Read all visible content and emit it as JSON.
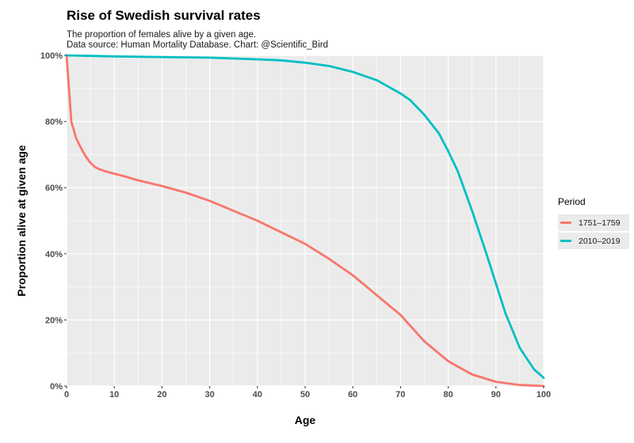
{
  "title": "Rise of Swedish survival rates",
  "subtitle_line1": "The proportion of females alive by a given age.",
  "subtitle_line2": "Data source: Human Mortality Database. Chart: @Scientific_Bird",
  "legend": {
    "title": "Period",
    "items": [
      {
        "label": "1751–1759",
        "color": "#F8766D"
      },
      {
        "label": "2010–2019",
        "color": "#00BFC4"
      }
    ]
  },
  "chart_data": {
    "type": "line",
    "title": "Rise of Swedish survival rates",
    "xlabel": "Age",
    "ylabel": "Proportion alive at given age",
    "xlim": [
      0,
      100
    ],
    "ylim": [
      0,
      100
    ],
    "x_ticks": [
      0,
      10,
      20,
      30,
      40,
      50,
      60,
      70,
      80,
      90,
      100
    ],
    "y_ticks": [
      0,
      20,
      40,
      60,
      80,
      100
    ],
    "y_tick_labels": [
      "0%",
      "20%",
      "40%",
      "60%",
      "80%",
      "100%"
    ],
    "grid": true,
    "legend_position": "right",
    "background": "#EBEBEB",
    "series": [
      {
        "name": "1751–1759",
        "color": "#F8766D",
        "x": [
          0,
          1,
          2,
          3,
          4,
          5,
          6,
          7,
          8,
          10,
          12,
          15,
          20,
          25,
          30,
          35,
          40,
          45,
          50,
          55,
          60,
          65,
          70,
          75,
          80,
          85,
          90,
          95,
          100
        ],
        "y": [
          100,
          80,
          75,
          72,
          69.5,
          67.5,
          66.2,
          65.5,
          65,
          64.2,
          63.5,
          62.2,
          60.5,
          58.5,
          56,
          53,
          50,
          46.5,
          43,
          38.5,
          33.5,
          27.5,
          21.5,
          13.5,
          7.5,
          3.5,
          1.3,
          0.3,
          0
        ]
      },
      {
        "name": "2010–2019",
        "color": "#00BFC4",
        "x": [
          0,
          10,
          20,
          30,
          40,
          45,
          50,
          55,
          60,
          65,
          70,
          72,
          75,
          78,
          80,
          82,
          85,
          88,
          90,
          92,
          95,
          98,
          100
        ],
        "y": [
          100,
          99.7,
          99.5,
          99.3,
          98.8,
          98.5,
          97.8,
          96.8,
          95,
          92.5,
          88.5,
          86.5,
          82,
          76.5,
          71,
          65,
          53,
          40,
          31,
          22,
          11.5,
          5,
          2.5
        ]
      }
    ]
  }
}
